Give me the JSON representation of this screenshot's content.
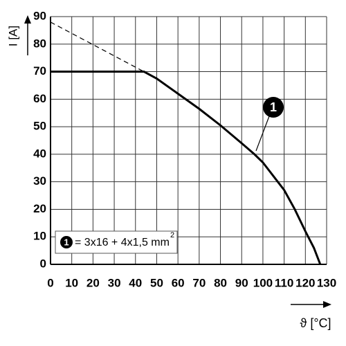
{
  "chart_data": {
    "type": "line",
    "y_label": "I [A]",
    "x_label": "ϑ [°C]",
    "series": [
      {
        "name": "1",
        "color": "#000000",
        "style": "solid",
        "x": [
          0,
          44,
          50,
          60,
          70,
          80,
          90,
          96,
          100,
          107,
          110,
          115,
          120,
          124,
          127
        ],
        "values": [
          70,
          70,
          67.5,
          62,
          56.5,
          50.5,
          44,
          40,
          37,
          30,
          27,
          20,
          12,
          6,
          0
        ]
      },
      {
        "color": "#000000",
        "style": "dashed",
        "x": [
          0,
          44
        ],
        "values": [
          88,
          70
        ]
      }
    ],
    "legend_text": "= 3x16 + 4x1,5 mm",
    "legend_superscript": "2",
    "xlim": [
      0,
      130
    ],
    "xticks": [
      0,
      10,
      20,
      30,
      40,
      50,
      60,
      70,
      80,
      90,
      100,
      110,
      120,
      130
    ],
    "ylim": [
      0,
      90
    ],
    "yticks": [
      0,
      10,
      20,
      30,
      40,
      50,
      60,
      70,
      80,
      90
    ],
    "grid": true
  }
}
